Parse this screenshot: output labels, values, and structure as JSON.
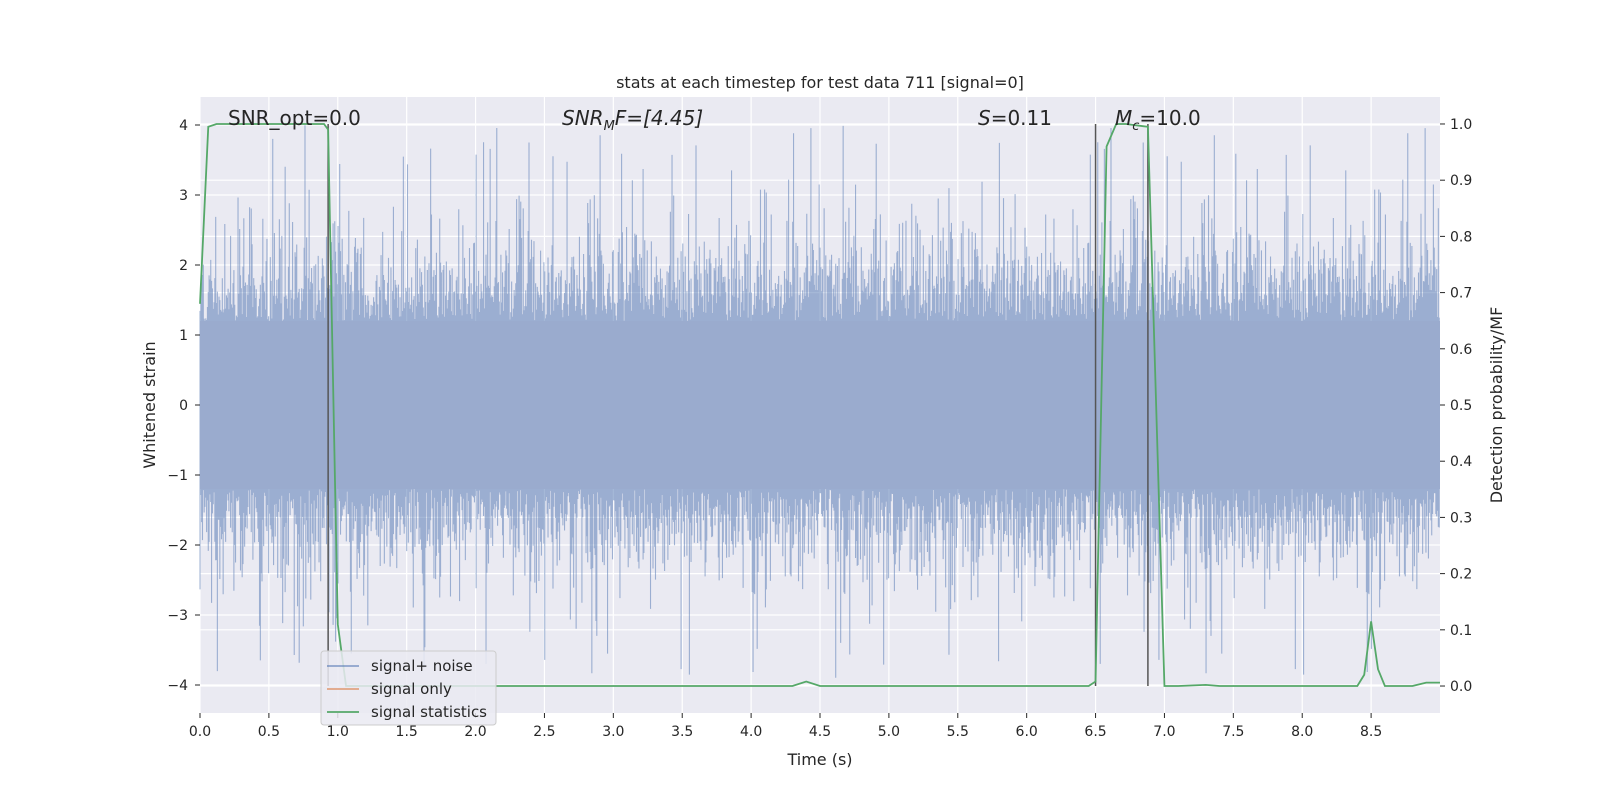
{
  "chart_data": {
    "type": "line",
    "title": "stats at each timestep for test data 711 [signal=0]",
    "xlabel": "Time (s)",
    "ylabel_left": "Whitened strain",
    "ylabel_right": "Detection probability/MF",
    "xlim": [
      0.0,
      9.0
    ],
    "ylim_left": [
      -4.4,
      4.4
    ],
    "ylim_right": [
      -0.048,
      1.048
    ],
    "x_ticks": [
      "0.0",
      "0.5",
      "1.0",
      "1.5",
      "2.0",
      "2.5",
      "3.0",
      "3.5",
      "4.0",
      "4.5",
      "5.0",
      "5.5",
      "6.0",
      "6.5",
      "7.0",
      "7.5",
      "8.0",
      "8.5"
    ],
    "y_ticks_left": [
      "4",
      "3",
      "2",
      "1",
      "0",
      "−1",
      "−2",
      "−3",
      "−4"
    ],
    "y_ticks_right": [
      "1.0",
      "0.9",
      "0.8",
      "0.7",
      "0.6",
      "0.5",
      "0.4",
      "0.3",
      "0.2",
      "0.1",
      "0.0"
    ],
    "grid": true,
    "legend_position": "bottom-left",
    "annotations": {
      "snr_opt": "SNR_opt=0.0",
      "snr_mf_symbol": "SNR",
      "snr_mf_sub": "M",
      "snr_mf_rest": "F=[4.45]",
      "s_symbol": "S",
      "s_value": "=0.11",
      "mc_symbol": "M",
      "mc_sub": "c",
      "mc_value": "=10.0"
    },
    "vertical_lines_x": [
      0.93,
      6.5,
      6.88
    ],
    "series": [
      {
        "name": "signal+ noise",
        "color": "#4c72b0",
        "description_only": false,
        "noise_envelope": {
          "typical_min": -2.6,
          "typical_max": 2.6,
          "peak_min": -3.9,
          "peak_max": 4.0
        }
      },
      {
        "name": "signal only",
        "color": "#dd8452",
        "values": []
      },
      {
        "name": "signal statistics",
        "color": "#55a868",
        "x": [
          0.0,
          0.06,
          0.12,
          0.5,
          0.9,
          0.93,
          1.0,
          1.06,
          1.2,
          4.3,
          4.4,
          4.5,
          4.6,
          6.45,
          6.5,
          6.52,
          6.58,
          6.65,
          6.72,
          6.88,
          7.0,
          7.1,
          7.3,
          7.4,
          8.4,
          8.45,
          8.5,
          8.55,
          8.6,
          8.8,
          8.9,
          9.0
        ],
        "values": [
          0.68,
          0.995,
          1.0,
          1.0,
          1.0,
          0.99,
          0.11,
          0.0,
          0.0,
          0.0,
          0.008,
          0.0,
          0.0,
          0.0,
          0.008,
          0.25,
          0.96,
          1.0,
          1.0,
          0.995,
          0.0,
          0.0,
          0.002,
          0.0,
          0.0,
          0.02,
          0.115,
          0.03,
          0.0,
          0.0,
          0.006,
          0.006
        ]
      }
    ]
  }
}
